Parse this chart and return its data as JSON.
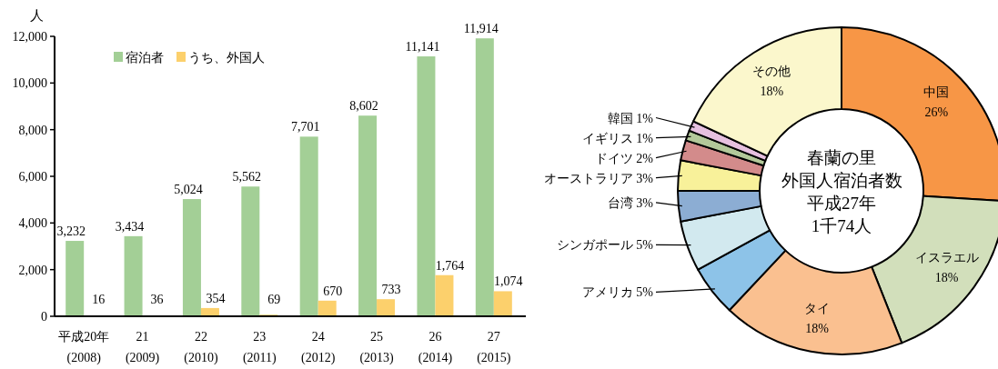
{
  "chart_data": [
    {
      "type": "bar",
      "ylabel": "人",
      "categories": [
        "平成20年 (2008)",
        "21 (2009)",
        "22 (2010)",
        "23 (2011)",
        "24 (2012)",
        "25 (2013)",
        "26 (2014)",
        "27 (2015)"
      ],
      "series": [
        {
          "name": "宿泊者",
          "color": "#a3cf96",
          "values": [
            3232,
            3434,
            5024,
            5562,
            7701,
            8602,
            11141,
            11914
          ],
          "value_labels": [
            "3,232",
            "3,434",
            "5,024",
            "5,562",
            "7,701",
            "8,602",
            "11,141",
            "11,914"
          ]
        },
        {
          "name": "うち、外国人",
          "color": "#fcd06c",
          "values": [
            16,
            36,
            354,
            69,
            670,
            733,
            1764,
            1074
          ],
          "value_labels": [
            "16",
            "36",
            "354",
            "69",
            "670",
            "733",
            "1,764",
            "1,074"
          ]
        }
      ],
      "ylim": [
        0,
        12000
      ],
      "yticks": [
        0,
        {
          "value": 2000,
          "label": "2,000"
        },
        {
          "value": 4000,
          "label": "4,000"
        },
        {
          "value": 6000,
          "label": "6,000"
        },
        {
          "value": 8000,
          "label": "8,000"
        },
        {
          "value": 10000,
          "label": "10,000"
        },
        {
          "value": 12000,
          "label": "12,000"
        }
      ],
      "legend": "top left"
    },
    {
      "type": "donut",
      "title": "春蘭の里",
      "subtitle": "外国人宿泊者数",
      "annotations": [
        "平成27年",
        "1千74人"
      ],
      "categories": [
        "中国",
        "イスラエル",
        "タイ",
        "アメリカ",
        "シンガポール",
        "台湾",
        "オーストラリア",
        "ドイツ",
        "イギリス",
        "韓国",
        "その他"
      ],
      "values": [
        26,
        18,
        18,
        5,
        5,
        3,
        3,
        2,
        1,
        1,
        18
      ],
      "value_labels": [
        "26%",
        "18%",
        "18%",
        "5%",
        "5%",
        "3%",
        "3%",
        "2%",
        "1%",
        "1%",
        "18%"
      ],
      "colors": [
        "#f79646",
        "#d2dfbb",
        "#fac090",
        "#8dc3e8",
        "#d2e9ef",
        "#8cadd3",
        "#f8f19a",
        "#d38b8b",
        "#b3c89a",
        "#e6c0e0",
        "#fbf7cc"
      ]
    }
  ]
}
